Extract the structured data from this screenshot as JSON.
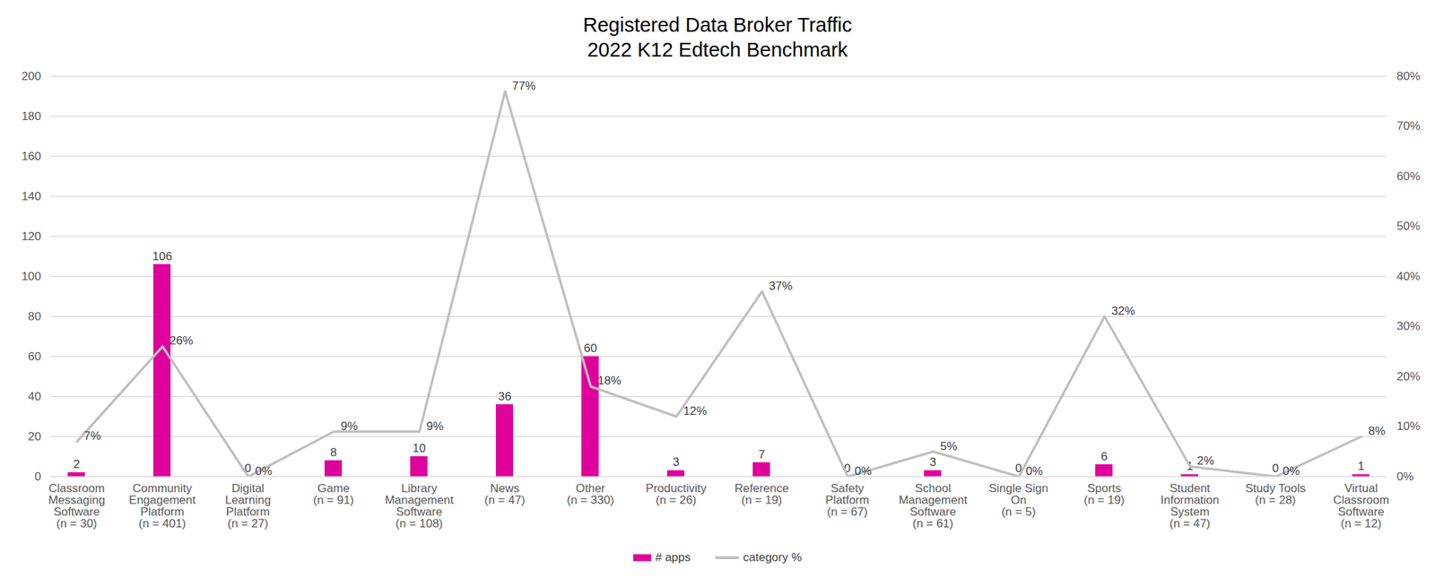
{
  "chart_data": {
    "type": "bar",
    "title": "Registered Data Broker Traffic",
    "subtitle": "2022 K12 Edtech Benchmark",
    "categories": [
      "Classroom Messaging Software (n = 30)",
      "Community Engagement Platform (n = 401)",
      "Digital Learning Platform (n = 27)",
      "Game (n = 91)",
      "Library Management Software (n = 108)",
      "News (n = 47)",
      "Other (n = 330)",
      "Productivity (n = 26)",
      "Reference (n = 19)",
      "Safety Platform (n = 67)",
      "School Management Software (n = 61)",
      "Single Sign On (n = 5)",
      "Sports (n = 19)",
      "Student Information System (n = 47)",
      "Study Tools (n = 28)",
      "Virtual Classroom Software (n = 12)"
    ],
    "series": [
      {
        "name": "# apps",
        "type": "bar",
        "color": "#e0009c",
        "values": [
          2,
          106,
          0,
          8,
          10,
          36,
          60,
          3,
          7,
          0,
          3,
          0,
          6,
          1,
          0,
          1
        ]
      },
      {
        "name": "category %",
        "type": "line",
        "axis": "y2",
        "color": "#bfbfbf",
        "values": [
          7,
          26,
          0,
          9,
          9,
          77,
          18,
          12,
          37,
          0,
          5,
          0,
          32,
          2,
          0,
          8
        ],
        "value_labels": [
          "7%",
          "26%",
          "0%",
          "9%",
          "9%",
          "77%",
          "18%",
          "12%",
          "37%",
          "0%",
          "5%",
          "0%",
          "32%",
          "2%",
          "0%",
          "8%"
        ]
      }
    ],
    "ylim": [
      0,
      200
    ],
    "yticks": [
      0,
      20,
      40,
      60,
      80,
      100,
      120,
      140,
      160,
      180,
      200
    ],
    "y2lim": [
      0,
      80
    ],
    "y2ticks": [
      {
        "value": 0,
        "label": "0%"
      },
      {
        "value": 10,
        "label": "10%"
      },
      {
        "value": 20,
        "label": "20%"
      },
      {
        "value": 30,
        "label": "30%"
      },
      {
        "value": 40,
        "label": "40%"
      },
      {
        "value": 50,
        "label": "50%"
      },
      {
        "value": 60,
        "label": "60%"
      },
      {
        "value": 70,
        "label": "70%"
      },
      {
        "value": 80,
        "label": "80%"
      }
    ],
    "grid": true,
    "data_labels": true,
    "legend": "bottom"
  }
}
